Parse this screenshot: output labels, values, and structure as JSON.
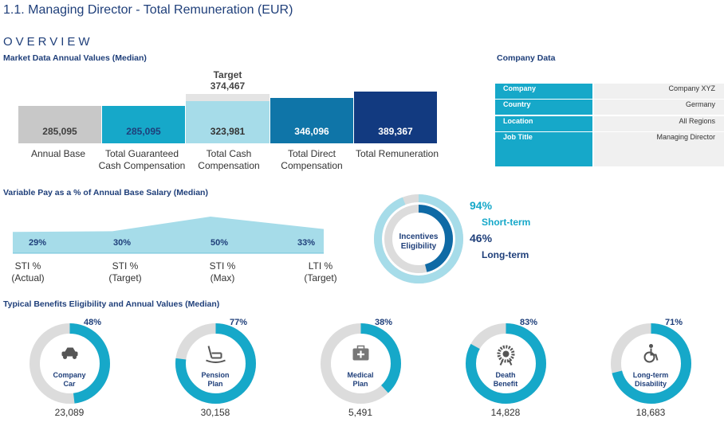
{
  "page": {
    "title": "1.1. Managing Director - Total Remuneration (EUR)",
    "overview": "OVERVIEW"
  },
  "colors": {
    "navy": "#1f3f7a",
    "accent": "#16a8c9",
    "grey": "#c8c8c8",
    "light_blue": "#a6dce9",
    "track": "#dcdcdc"
  },
  "market": {
    "title": "Market Data Annual Values (Median)",
    "target_label": "Target",
    "target_value": "374,467",
    "bars": [
      {
        "name": "Annual Base",
        "value": "285,095"
      },
      {
        "name": "Total Guaranteed Cash Compensation",
        "value": "285,095"
      },
      {
        "name": "Total Cash Compensation",
        "value": "323,981"
      },
      {
        "name": "Total Direct Compensation",
        "value": "346,096"
      },
      {
        "name": "Total Remuneration",
        "value": "389,367"
      }
    ],
    "labels": [
      [
        "Annual Base",
        ""
      ],
      [
        "Total Guaranteed",
        "Cash Compensation"
      ],
      [
        "Total Cash",
        "Compensation"
      ],
      [
        "Total Direct",
        "Compensation"
      ],
      [
        "Total Remuneration",
        ""
      ]
    ]
  },
  "company": {
    "title": "Company Data",
    "rows": [
      {
        "key": "Company",
        "value": "Company XYZ"
      },
      {
        "key": "Country",
        "value": "Germany"
      },
      {
        "key": "Location",
        "value": "All Regions"
      },
      {
        "key": "Job Title",
        "value": "Managing Director"
      }
    ]
  },
  "variable_pay": {
    "title": "Variable Pay as a % of Annual Base Salary (Median)",
    "items": [
      {
        "value": "29%",
        "pct": 29,
        "line1": "STI %",
        "line2": "(Actual)"
      },
      {
        "value": "30%",
        "pct": 30,
        "line1": "STI %",
        "line2": "(Target)"
      },
      {
        "value": "50%",
        "pct": 50,
        "line1": "STI %",
        "line2": "(Max)"
      },
      {
        "value": "33%",
        "pct": 33,
        "line1": "LTI %",
        "line2": "(Target)"
      }
    ]
  },
  "incentives": {
    "title_line1": "Incentives",
    "title_line2": "Eligibility",
    "short_term_pct": "94%",
    "short_term_value": 94,
    "short_term_label": "Short-term",
    "long_term_pct": "46%",
    "long_term_value": 46,
    "long_term_label": "Long-term"
  },
  "benefits": {
    "title": "Typical Benefits Eligibility and Annual Values (Median)",
    "items": [
      {
        "name1": "Company",
        "name2": "Car",
        "pct": "48%",
        "pct_value": 48,
        "value": "23,089",
        "icon": "car-icon"
      },
      {
        "name1": "Pension",
        "name2": "Plan",
        "pct": "77%",
        "pct_value": 77,
        "value": "30,158",
        "icon": "rocking-chair-icon"
      },
      {
        "name1": "Medical",
        "name2": "Plan",
        "pct": "38%",
        "pct_value": 38,
        "value": "5,491",
        "icon": "medical-kit-icon"
      },
      {
        "name1": "Death",
        "name2": "Benefit",
        "pct": "83%",
        "pct_value": 83,
        "value": "14,828",
        "icon": "wreath-icon"
      },
      {
        "name1": "Long-term",
        "name2": "Disability",
        "pct": "71%",
        "pct_value": 71,
        "value": "18,683",
        "icon": "wheelchair-icon"
      }
    ]
  }
}
